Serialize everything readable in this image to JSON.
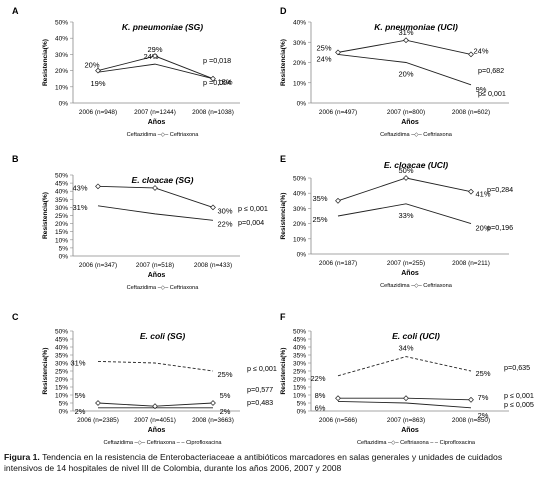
{
  "caption": {
    "label": "Figura 1.",
    "text": "Tendencia en la resistencia de Enterobacteriaceae a antibióticos marcadores en salas generales y unidades de cuidados intensivos de 14 hospitales de nivel III de Colombia, durante los años 2006, 2007 y 2008"
  },
  "chart_data": [
    {
      "type": "line",
      "panel": "A",
      "title": "K. pneumoniae (SG)",
      "xlabel": "Años",
      "ylabel": "Resistencia(%)",
      "categories": [
        "2006 (n=948)",
        "2007 (n=1244)",
        "2008 (n=1038)"
      ],
      "ylim": [
        0,
        50
      ],
      "yticks": [
        "0%",
        "10%",
        "20%",
        "30%",
        "40%",
        "50%"
      ],
      "series": [
        {
          "name": "Ceftazidima",
          "values": [
            19,
            24,
            15
          ],
          "labels": [
            "19%",
            "24%",
            "15%"
          ],
          "style": "solid",
          "marker": "none"
        },
        {
          "name": "Ceftriaxona",
          "values": [
            20,
            29,
            15
          ],
          "labels": [
            "20%",
            "29%",
            ""
          ],
          "style": "solid",
          "marker": "open"
        }
      ],
      "annotations": [
        "p =0,018",
        "p =0,004"
      ],
      "legend": "Ceftazidima –◇– Ceftriaxona"
    },
    {
      "type": "line",
      "panel": "D",
      "title": "K. pneumoniae (UCI)",
      "xlabel": "Años",
      "ylabel": "Resistencia(%)",
      "categories": [
        "2006 (n=497)",
        "2007 (n=800)",
        "2008 (n=602)"
      ],
      "ylim": [
        0,
        40
      ],
      "yticks": [
        "0%",
        "10%",
        "20%",
        "30%",
        "40%"
      ],
      "series": [
        {
          "name": "Ceftazidima",
          "values": [
            24,
            20,
            9
          ],
          "labels": [
            "24%",
            "20%",
            "9%"
          ],
          "style": "solid",
          "marker": "none"
        },
        {
          "name": "Ceftriaxona",
          "values": [
            25,
            31,
            24
          ],
          "labels": [
            "25%",
            "31%",
            "24%"
          ],
          "style": "solid",
          "marker": "open"
        }
      ],
      "annotations": [
        "p=0,682",
        "p≤ 0,001"
      ],
      "legend": "Ceftazidima –◇– Ceftriaxona"
    },
    {
      "type": "line",
      "panel": "B",
      "title": "E. cloacae (SG)",
      "xlabel": "Años",
      "ylabel": "Resistencia(%)",
      "categories": [
        "2006 (n=347)",
        "2007 (n=518)",
        "2008 (n=433)"
      ],
      "ylim": [
        0,
        50
      ],
      "yticks": [
        "0%",
        "5%",
        "10%",
        "15%",
        "20%",
        "25%",
        "30%",
        "35%",
        "40%",
        "45%",
        "50%"
      ],
      "series": [
        {
          "name": "Ceftazidima",
          "values": [
            31,
            26,
            22
          ],
          "labels": [
            "31%",
            "",
            "22%"
          ],
          "style": "solid",
          "marker": "none"
        },
        {
          "name": "Ceftriaxona",
          "values": [
            43,
            42,
            30
          ],
          "labels": [
            "43%",
            "",
            "30%"
          ],
          "style": "solid",
          "marker": "open"
        }
      ],
      "annotations": [
        "p ≤ 0,001",
        "p=0,004"
      ],
      "legend": "Ceftazidima –◇– Ceftriaxona"
    },
    {
      "type": "line",
      "panel": "E",
      "title": "E. cloacae (UCI)",
      "xlabel": "Años",
      "ylabel": "Resistencia(%)",
      "categories": [
        "2006 (n=187)",
        "2007 (n=255)",
        "2008 (n=211)"
      ],
      "ylim": [
        0,
        50
      ],
      "yticks": [
        "0%",
        "10%",
        "20%",
        "30%",
        "40%",
        "50%"
      ],
      "series": [
        {
          "name": "Ceftazidima",
          "values": [
            25,
            33,
            20
          ],
          "labels": [
            "25%",
            "33%",
            "20%"
          ],
          "style": "solid",
          "marker": "none"
        },
        {
          "name": "Ceftriaxona",
          "values": [
            35,
            50,
            41
          ],
          "labels": [
            "35%",
            "50%",
            "41%"
          ],
          "style": "solid",
          "marker": "open"
        }
      ],
      "annotations": [
        "p=0,284",
        "p=0,196"
      ],
      "legend": "Ceftazidima –◇– Ceftriaxona"
    },
    {
      "type": "line",
      "panel": "C",
      "title": "E. coli (SG)",
      "xlabel": "Años",
      "ylabel": "Resistencia(%)",
      "categories": [
        "2006 (n=2385)",
        "2007 (n=4051)",
        "2008 (n=3663)"
      ],
      "ylim": [
        0,
        50
      ],
      "yticks": [
        "0%",
        "5%",
        "10%",
        "15%",
        "20%",
        "25%",
        "30%",
        "35%",
        "40%",
        "45%",
        "50%"
      ],
      "series": [
        {
          "name": "Ceftazidima",
          "values": [
            2,
            2,
            2
          ],
          "labels": [
            "2%",
            "",
            "2%"
          ],
          "style": "solid",
          "marker": "none"
        },
        {
          "name": "Ceftriaxona",
          "values": [
            5,
            3,
            5
          ],
          "labels": [
            "5%",
            "",
            "5%"
          ],
          "style": "solid",
          "marker": "open"
        },
        {
          "name": "Ciprofloxacina",
          "values": [
            31,
            30,
            25
          ],
          "labels": [
            "31%",
            "",
            "25%"
          ],
          "style": "dashed",
          "marker": "none"
        }
      ],
      "annotations": [
        "p ≤ 0,001",
        "p=0,577",
        "p=0,483"
      ],
      "legend": "Ceftazidima –◇– Ceftriaxona – – Ciprofloxacina"
    },
    {
      "type": "line",
      "panel": "F",
      "title": "E. coli (UCI)",
      "xlabel": "Años",
      "ylabel": "Resistencia(%)",
      "categories": [
        "2006 (n=566)",
        "2007 (n=863)",
        "2008 (n=850)"
      ],
      "ylim": [
        0,
        50
      ],
      "yticks": [
        "0%",
        "5%",
        "10%",
        "15%",
        "20%",
        "25%",
        "30%",
        "35%",
        "40%",
        "45%",
        "50%"
      ],
      "series": [
        {
          "name": "Ceftazidima",
          "values": [
            6,
            5,
            2
          ],
          "labels": [
            "6%",
            "",
            "2%"
          ],
          "style": "solid",
          "marker": "none"
        },
        {
          "name": "Ceftriaxona",
          "values": [
            8,
            8,
            7
          ],
          "labels": [
            "8%",
            "",
            "7%"
          ],
          "style": "solid",
          "marker": "open"
        },
        {
          "name": "Ciprofloxacina",
          "values": [
            22,
            34,
            25
          ],
          "labels": [
            "22%",
            "34%",
            "25%"
          ],
          "style": "dashed",
          "marker": "none"
        }
      ],
      "annotations": [
        "p=0,635",
        "p ≤ 0,001",
        "p ≤ 0,005"
      ],
      "legend": "Ceftazidima –◇– Ceftriaxona – – Ciprofloxacina"
    }
  ]
}
